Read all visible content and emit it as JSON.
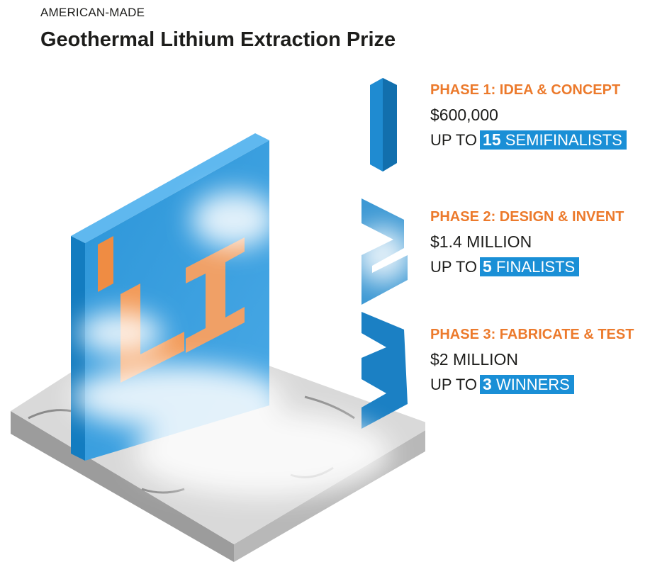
{
  "header": {
    "kicker": "AMERICAN-MADE",
    "title": "Geothermal Lithium Extraction Prize"
  },
  "phases": [
    {
      "title": "PHASE 1: IDEA & CONCEPT",
      "prize": "$600,000",
      "prefix": "UP TO",
      "count": "15",
      "label": "SEMIFINALISTS"
    },
    {
      "title": "PHASE 2: DESIGN & INVENT",
      "prize": "$1.4 MILLION",
      "prefix": "UP TO",
      "count": "5",
      "label": "FINALISTS"
    },
    {
      "title": "PHASE 3: FABRICATE & TEST",
      "prize": "$2 MILLION",
      "prefix": "UP TO",
      "count": "3",
      "label": "WINNERS"
    }
  ]
}
